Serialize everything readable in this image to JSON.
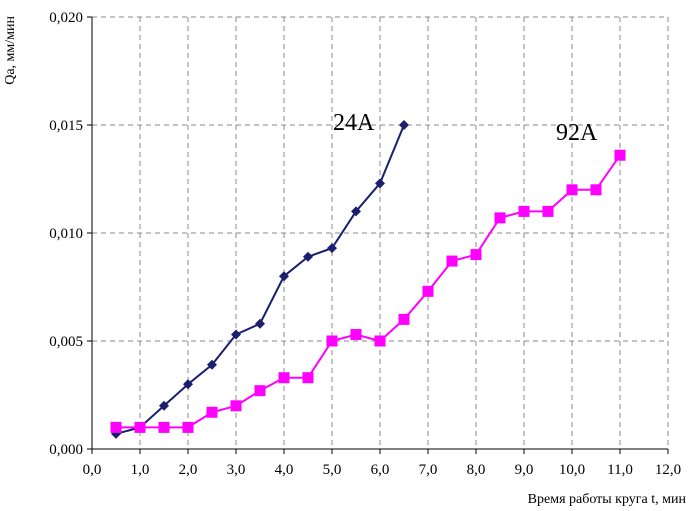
{
  "chart_data": {
    "type": "line",
    "xlabel": "Время работы круга t, мин",
    "ylabel": "Qa, мм/мин",
    "xlim": [
      0,
      12
    ],
    "ylim": [
      0,
      0.02
    ],
    "x_ticks": [
      "0,0",
      "1,0",
      "2,0",
      "3,0",
      "4,0",
      "5,0",
      "6,0",
      "7,0",
      "8,0",
      "9,0",
      "10,0",
      "11,0",
      "12,0"
    ],
    "y_ticks": [
      "0,000",
      "0,005",
      "0,010",
      "0,015",
      "0,020"
    ],
    "grid": true,
    "series": [
      {
        "name": "24A",
        "color": "#1a1f6e",
        "marker": "diamond",
        "x": [
          0.5,
          1.0,
          1.5,
          2.0,
          2.5,
          3.0,
          3.5,
          4.0,
          4.5,
          5.0,
          5.5,
          6.0,
          6.5
        ],
        "y": [
          0.0007,
          0.001,
          0.002,
          0.003,
          0.0039,
          0.0053,
          0.0058,
          0.008,
          0.0089,
          0.0093,
          0.011,
          0.0123,
          0.015
        ]
      },
      {
        "name": "92A",
        "color": "#ff00ff",
        "marker": "square",
        "x": [
          0.5,
          1.0,
          1.5,
          2.0,
          2.5,
          3.0,
          3.5,
          4.0,
          4.5,
          5.0,
          5.5,
          6.0,
          6.5,
          7.0,
          7.5,
          8.0,
          8.5,
          9.0,
          9.5,
          10.0,
          10.5,
          11.0
        ],
        "y": [
          0.001,
          0.001,
          0.001,
          0.001,
          0.0017,
          0.002,
          0.0027,
          0.0033,
          0.0033,
          0.005,
          0.0053,
          0.005,
          0.006,
          0.0073,
          0.0087,
          0.009,
          0.0107,
          0.011,
          0.011,
          0.012,
          0.012,
          0.0136
        ]
      }
    ]
  }
}
